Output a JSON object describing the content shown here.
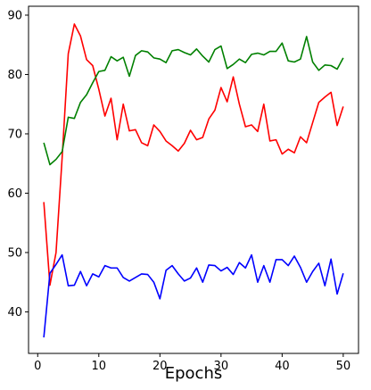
{
  "chart_data": {
    "type": "line",
    "xlabel": "Epochs",
    "ylabel": "",
    "xlim": [
      -1.5,
      52.5
    ],
    "ylim": [
      33,
      91.5
    ],
    "xticks": [
      0,
      10,
      20,
      30,
      40,
      50
    ],
    "yticks": [
      40,
      50,
      60,
      70,
      80,
      90
    ],
    "grid": false,
    "legend": "none",
    "x": [
      1,
      2,
      3,
      4,
      5,
      6,
      7,
      8,
      9,
      10,
      11,
      12,
      13,
      14,
      15,
      16,
      17,
      18,
      19,
      20,
      21,
      22,
      23,
      24,
      25,
      26,
      27,
      28,
      29,
      30,
      31,
      32,
      33,
      34,
      35,
      36,
      37,
      38,
      39,
      40,
      41,
      42,
      43,
      44,
      45,
      46,
      47,
      48,
      49,
      50
    ],
    "series": [
      {
        "color": "#ff0000",
        "values": [
          58.5,
          44.5,
          50.0,
          66.0,
          83.5,
          88.5,
          86.5,
          82.5,
          81.5,
          77.5,
          73.0,
          76.0,
          69.0,
          75.0,
          70.5,
          70.7,
          68.5,
          68.0,
          71.5,
          70.4,
          68.8,
          68.0,
          67.1,
          68.4,
          70.6,
          69.0,
          69.4,
          72.5,
          74.0,
          77.8,
          75.4,
          79.6,
          75.0,
          71.2,
          71.5,
          70.4,
          75.0,
          68.8,
          69.0,
          66.6,
          67.4,
          66.8,
          69.5,
          68.5,
          71.9,
          75.3,
          76.2,
          77.0,
          71.4,
          74.6
        ]
      },
      {
        "color": "#008000",
        "values": [
          68.5,
          64.8,
          65.7,
          67.0,
          72.8,
          72.6,
          75.3,
          76.6,
          78.6,
          80.5,
          80.7,
          83.0,
          82.3,
          82.9,
          79.7,
          83.2,
          84.0,
          83.8,
          82.8,
          82.6,
          82.0,
          84.0,
          84.2,
          83.7,
          83.3,
          84.3,
          83.1,
          82.1,
          84.2,
          84.8,
          81.0,
          81.7,
          82.6,
          82.0,
          83.4,
          83.6,
          83.3,
          83.9,
          83.9,
          85.3,
          82.3,
          82.1,
          82.6,
          86.4,
          82.1,
          80.7,
          81.6,
          81.5,
          80.9,
          82.8
        ]
      },
      {
        "color": "#0000ff",
        "values": [
          35.7,
          46.5,
          48.0,
          49.6,
          44.4,
          44.5,
          46.8,
          44.4,
          46.4,
          45.9,
          47.8,
          47.4,
          47.4,
          45.8,
          45.2,
          45.8,
          46.4,
          46.3,
          45.0,
          42.2,
          47.0,
          47.8,
          46.4,
          45.2,
          45.7,
          47.4,
          45.0,
          47.9,
          47.8,
          46.9,
          47.5,
          46.3,
          48.3,
          47.4,
          49.6,
          45.0,
          47.8,
          45.0,
          48.8,
          48.8,
          47.8,
          49.4,
          47.5,
          45.0,
          46.8,
          48.2,
          44.4,
          48.9,
          43.0,
          46.5
        ]
      }
    ]
  }
}
